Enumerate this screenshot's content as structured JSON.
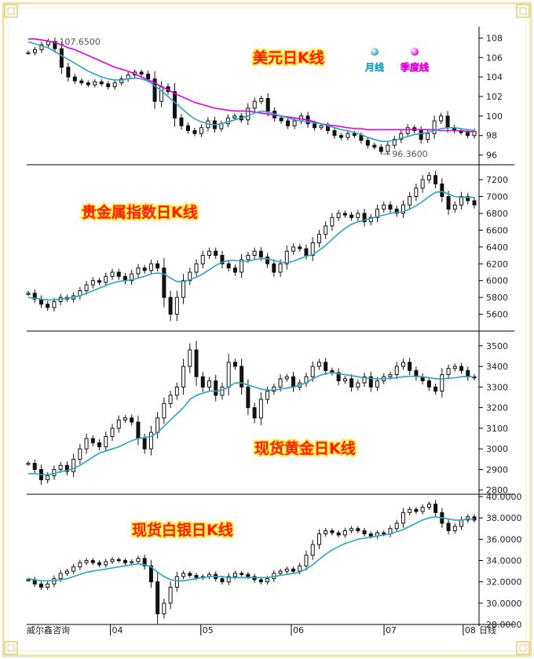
{
  "footer": {
    "source": "威尔鑫咨询",
    "x_unit": "日线"
  },
  "x_axis": {
    "ticks": [
      {
        "label": "04",
        "pos": 0.185
      },
      {
        "label": "05",
        "pos": 0.385
      },
      {
        "label": "06",
        "pos": 0.585
      },
      {
        "label": "07",
        "pos": 0.79
      },
      {
        "label": "08",
        "pos": 0.965
      }
    ]
  },
  "colors": {
    "candle": "#111111",
    "ma_month": "#2aa6c4",
    "ma_quarter": "#e000e0",
    "title": "#ff1a00",
    "title_outline": "#ffe84a",
    "frame": "#f0e4a8"
  },
  "chart_data": [
    {
      "type": "candlestick",
      "title": "美元日K线",
      "ylim": [
        95,
        109
      ],
      "yticks": [
        96,
        98,
        100,
        102,
        104,
        106,
        108
      ],
      "legend": [
        {
          "label": "月线",
          "color": "#2aa6c4",
          "icon": "blue-sphere-icon"
        },
        {
          "label": "季度线",
          "color": "#e000e0",
          "icon": "magenta-sphere-icon"
        }
      ],
      "annotations": [
        {
          "text": "107.6500",
          "value": 107.65
        },
        {
          "text": "96.3600",
          "value": 96.36
        }
      ],
      "close": [
        106.5,
        106.8,
        107.3,
        107.65,
        106.9,
        105.0,
        104.0,
        103.6,
        103.4,
        103.2,
        103.5,
        103.3,
        103.0,
        103.4,
        103.8,
        104.2,
        104.5,
        104.3,
        103.8,
        101.5,
        103.0,
        102.5,
        99.8,
        99.0,
        98.5,
        98.2,
        98.8,
        99.5,
        98.7,
        99.2,
        99.8,
        100.0,
        99.6,
        100.8,
        101.5,
        101.8,
        100.5,
        99.8,
        99.5,
        99.0,
        99.5,
        100.0,
        99.2,
        98.8,
        99.0,
        98.5,
        98.0,
        97.8,
        98.2,
        98.0,
        97.5,
        97.0,
        96.8,
        96.36,
        97.0,
        97.6,
        98.2,
        98.8,
        98.5,
        97.6,
        98.2,
        99.5,
        100.0,
        98.8,
        98.5,
        98.3,
        98.0,
        98.4
      ],
      "ma_month": [
        107.6,
        107.4,
        107.2,
        107.0,
        106.6,
        106.2,
        105.8,
        105.4,
        105.0,
        104.6,
        104.3,
        104.0,
        103.8,
        103.7,
        103.7,
        103.8,
        103.9,
        103.8,
        103.6,
        103.1,
        102.6,
        102.0,
        101.4,
        100.8,
        100.2,
        99.7,
        99.4,
        99.2,
        99.1,
        99.2,
        99.4,
        99.6,
        99.8,
        100.0,
        100.3,
        100.5,
        100.4,
        100.2,
        100.0,
        99.8,
        99.6,
        99.5,
        99.4,
        99.3,
        99.2,
        99.0,
        98.8,
        98.6,
        98.5,
        98.3,
        98.1,
        97.8,
        97.6,
        97.4,
        97.4,
        97.5,
        97.7,
        97.9,
        98.1,
        98.2,
        98.3,
        98.5,
        98.7,
        98.8,
        98.8,
        98.7,
        98.6,
        98.5
      ],
      "ma_quarter": [
        107.9,
        107.9,
        107.8,
        107.7,
        107.5,
        107.3,
        107.0,
        106.8,
        106.5,
        106.2,
        105.9,
        105.6,
        105.3,
        105.0,
        104.8,
        104.6,
        104.3,
        104.0,
        103.7,
        103.4,
        103.0,
        102.7,
        102.3,
        102.0,
        101.7,
        101.4,
        101.2,
        101.0,
        100.8,
        100.7,
        100.6,
        100.5,
        100.5,
        100.5,
        100.4,
        100.3,
        100.2,
        100.1,
        100.0,
        99.9,
        99.8,
        99.7,
        99.6,
        99.4,
        99.2,
        99.1,
        99.0,
        98.9,
        98.8,
        98.7,
        98.7,
        98.6,
        98.6,
        98.6,
        98.6,
        98.6,
        98.6,
        98.6,
        98.6,
        98.6,
        98.6,
        98.6,
        98.5,
        98.5,
        98.5,
        98.5,
        98.4,
        98.4
      ]
    },
    {
      "type": "candlestick",
      "title": "贵金属指数日K线",
      "ylim": [
        5400,
        7350
      ],
      "yticks": [
        5600,
        5800,
        6000,
        6200,
        6400,
        6600,
        6800,
        7000,
        7200
      ],
      "close": [
        5850,
        5780,
        5720,
        5680,
        5750,
        5800,
        5780,
        5820,
        5880,
        5950,
        6000,
        5980,
        6050,
        6100,
        6050,
        6000,
        6080,
        6150,
        6120,
        6200,
        6150,
        5800,
        5600,
        5800,
        6000,
        6100,
        6200,
        6300,
        6350,
        6300,
        6200,
        6150,
        6100,
        6250,
        6300,
        6350,
        6280,
        6200,
        6100,
        6200,
        6350,
        6400,
        6380,
        6300,
        6450,
        6550,
        6650,
        6750,
        6800,
        6780,
        6750,
        6800,
        6700,
        6750,
        6850,
        6900,
        6850,
        6800,
        6900,
        7000,
        7100,
        7200,
        7250,
        7150,
        7000,
        6850,
        6900,
        7000,
        6950,
        6900
      ],
      "ma_month": [
        5800,
        5790,
        5780,
        5770,
        5770,
        5780,
        5790,
        5800,
        5820,
        5850,
        5880,
        5910,
        5940,
        5970,
        5990,
        6000,
        6010,
        6030,
        6050,
        6080,
        6090,
        6080,
        6030,
        5990,
        5990,
        6010,
        6040,
        6080,
        6130,
        6180,
        6220,
        6240,
        6240,
        6230,
        6230,
        6250,
        6260,
        6260,
        6240,
        6220,
        6210,
        6230,
        6260,
        6290,
        6310,
        6360,
        6420,
        6490,
        6560,
        6620,
        6670,
        6700,
        6720,
        6740,
        6760,
        6780,
        6800,
        6810,
        6820,
        6850,
        6890,
        6940,
        7000,
        7050,
        7060,
        7030,
        7000,
        6990,
        6990,
        6990
      ]
    },
    {
      "type": "candlestick",
      "title": "现货黄金日K线",
      "ylim": [
        2780,
        3560
      ],
      "yticks": [
        2800,
        2900,
        3000,
        3100,
        3200,
        3300,
        3400,
        3500
      ],
      "close": [
        2930,
        2900,
        2850,
        2870,
        2900,
        2920,
        2890,
        2950,
        3000,
        3050,
        3030,
        3010,
        3060,
        3100,
        3140,
        3150,
        3130,
        3050,
        3000,
        3080,
        3150,
        3220,
        3260,
        3300,
        3400,
        3480,
        3350,
        3300,
        3330,
        3260,
        3300,
        3420,
        3400,
        3300,
        3200,
        3150,
        3240,
        3280,
        3300,
        3340,
        3350,
        3300,
        3320,
        3350,
        3400,
        3420,
        3380,
        3370,
        3330,
        3340,
        3300,
        3320,
        3350,
        3300,
        3330,
        3350,
        3360,
        3400,
        3420,
        3380,
        3350,
        3330,
        3300,
        3280,
        3360,
        3390,
        3400,
        3380,
        3350,
        3345
      ],
      "ma_month": [
        2880,
        2880,
        2875,
        2875,
        2880,
        2890,
        2895,
        2905,
        2920,
        2940,
        2960,
        2980,
        2990,
        3000,
        3010,
        3025,
        3040,
        3050,
        3055,
        3060,
        3080,
        3110,
        3140,
        3170,
        3200,
        3240,
        3260,
        3270,
        3280,
        3280,
        3285,
        3300,
        3320,
        3320,
        3310,
        3300,
        3290,
        3285,
        3285,
        3290,
        3295,
        3300,
        3310,
        3320,
        3340,
        3355,
        3365,
        3370,
        3365,
        3360,
        3355,
        3350,
        3345,
        3342,
        3340,
        3340,
        3342,
        3345,
        3350,
        3352,
        3352,
        3350,
        3345,
        3340,
        3340,
        3342,
        3345,
        3350,
        3350,
        3350
      ]
    },
    {
      "type": "candlestick",
      "title": "现货白银日K线",
      "ylim": [
        28,
        40
      ],
      "yticks": [
        28.0,
        30.0,
        32.0,
        34.0,
        36.0,
        38.0,
        40.0
      ],
      "ytick_labels": [
        "28.0000",
        "30.0000",
        "32.0000",
        "34.0000",
        "36.0000",
        "38.0000",
        "40.0000"
      ],
      "close": [
        32.2,
        31.8,
        31.5,
        31.8,
        32.3,
        32.8,
        33.0,
        33.4,
        33.8,
        34.0,
        33.8,
        33.6,
        33.9,
        34.1,
        34.0,
        33.8,
        33.9,
        34.2,
        33.5,
        32.0,
        29.0,
        30.0,
        31.5,
        32.5,
        32.8,
        32.6,
        32.4,
        32.5,
        32.7,
        32.3,
        32.0,
        32.5,
        32.8,
        32.7,
        32.5,
        32.2,
        32.0,
        32.3,
        32.8,
        33.0,
        33.2,
        33.0,
        33.5,
        34.5,
        35.5,
        36.5,
        36.8,
        36.6,
        36.4,
        36.8,
        37.0,
        36.8,
        36.5,
        36.3,
        36.6,
        36.5,
        37.0,
        37.5,
        38.5,
        38.8,
        38.6,
        39.0,
        39.3,
        38.5,
        37.5,
        36.8,
        37.2,
        37.8,
        38.1,
        37.8
      ],
      "ma_month": [
        32.3,
        32.2,
        32.1,
        32.1,
        32.1,
        32.2,
        32.3,
        32.5,
        32.7,
        32.9,
        33.0,
        33.1,
        33.2,
        33.3,
        33.4,
        33.5,
        33.6,
        33.7,
        33.6,
        33.4,
        32.9,
        32.5,
        32.2,
        32.1,
        32.1,
        32.2,
        32.3,
        32.4,
        32.5,
        32.5,
        32.5,
        32.4,
        32.4,
        32.4,
        32.4,
        32.4,
        32.4,
        32.4,
        32.5,
        32.6,
        32.7,
        32.8,
        32.9,
        33.2,
        33.6,
        34.1,
        34.6,
        35.0,
        35.3,
        35.6,
        35.8,
        36.0,
        36.1,
        36.2,
        36.3,
        36.4,
        36.5,
        36.7,
        36.9,
        37.2,
        37.5,
        37.8,
        38.0,
        38.1,
        38.0,
        37.9,
        37.8,
        37.8,
        37.9,
        37.9
      ]
    }
  ]
}
